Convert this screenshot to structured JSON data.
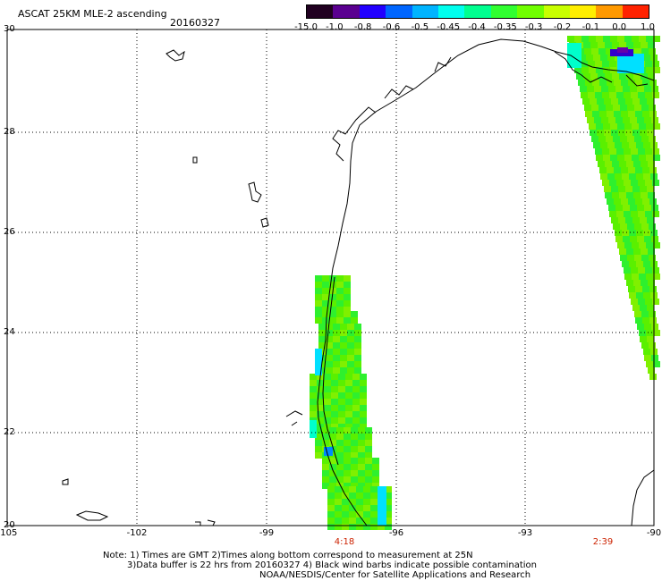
{
  "header": {
    "title": "ASCAT 25KM MLE-2 ascending",
    "date": "20160327"
  },
  "colorbar": {
    "labels": [
      "-15.0",
      "-1.0",
      "-0.8",
      "-0.6",
      "-0.5",
      "-0.45",
      "-0.4",
      "-0.35",
      "-0.3",
      "-0.2",
      "-0.1",
      "0.0",
      "1.0"
    ],
    "colors": [
      "#200020",
      "#5a0090",
      "#2200ff",
      "#0066ff",
      "#00b4ff",
      "#00ffee",
      "#00ff90",
      "#30ff30",
      "#70ff00",
      "#c8ff00",
      "#ffee00",
      "#ff9900",
      "#ff2200"
    ]
  },
  "axes": {
    "lat_ticks": [
      "30",
      "28",
      "26",
      "24",
      "22",
      "20"
    ],
    "lon_ticks": [
      "-105",
      "-102",
      "-99",
      "-96",
      "-93",
      "-90"
    ]
  },
  "pass_times": [
    "4:18",
    "2:39"
  ],
  "notes": {
    "line1": "Note: 1) Times are GMT 2)Times along bottom correspond to measurement at 25N",
    "line2": "3)Data buffer is 22 hrs from 20160327 4) Black wind barbs indicate possible contamination",
    "line3": "NOAA/NESDIS/Center for Satellite Applications and Research"
  }
}
